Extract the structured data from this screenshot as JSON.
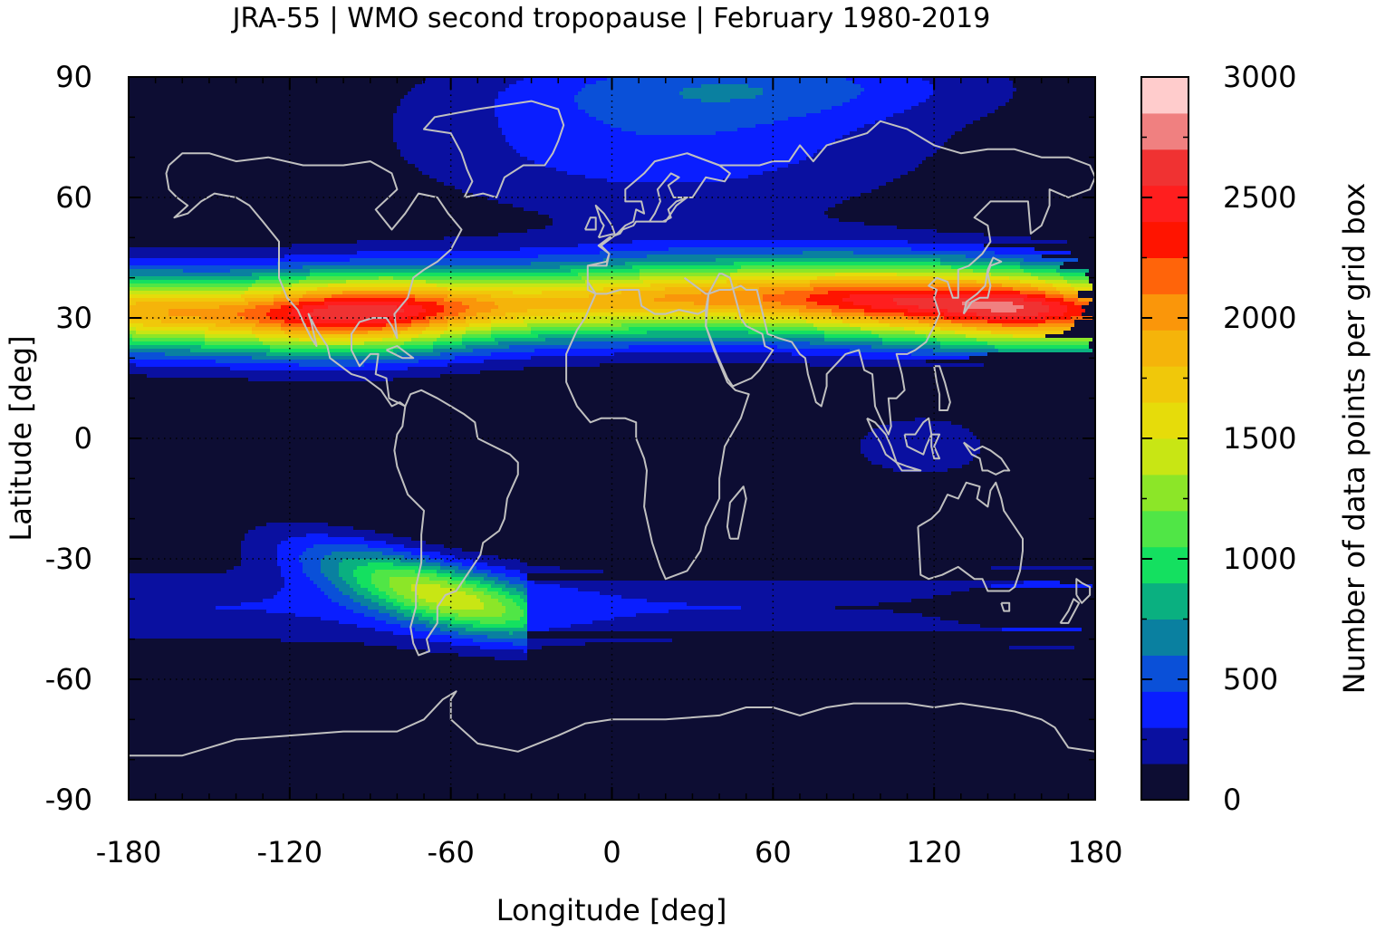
{
  "chart_data": {
    "type": "heatmap",
    "title": "JRA-55 | WMO second tropopause | February 1980-2019",
    "xlabel": "Longitude [deg]",
    "ylabel": "Latitude [deg]",
    "colorbar_label": "Number of data points per grid box",
    "xlim": [
      -180,
      180
    ],
    "ylim": [
      -90,
      90
    ],
    "xticks": [
      -180,
      -120,
      -60,
      0,
      60,
      120,
      180
    ],
    "yticks": [
      -90,
      -60,
      -30,
      0,
      30,
      60,
      90
    ],
    "xticklabels": [
      "-180",
      "-120",
      "-60",
      "0",
      "60",
      "120",
      "180"
    ],
    "yticklabels": [
      "-90",
      "-60",
      "-30",
      "0",
      "30",
      "60",
      "90"
    ],
    "colorbar_range": [
      0,
      3000
    ],
    "colorbar_ticks": [
      0,
      500,
      1000,
      1500,
      2000,
      2500,
      3000
    ],
    "colorbar_ticklabels": [
      "0",
      "500",
      "1000",
      "1500",
      "2000",
      "2500",
      "3000"
    ],
    "grid": "dotted at major ticks",
    "overlay": "coastlines (grey)",
    "colorscale": [
      {
        "from": 0,
        "to": 150,
        "color": "#0d0d33"
      },
      {
        "from": 150,
        "to": 300,
        "color": "#0a10a0"
      },
      {
        "from": 300,
        "to": 450,
        "color": "#0a1eff"
      },
      {
        "from": 450,
        "to": 600,
        "color": "#0a50d8"
      },
      {
        "from": 600,
        "to": 750,
        "color": "#0a80a0"
      },
      {
        "from": 750,
        "to": 900,
        "color": "#0ab080"
      },
      {
        "from": 900,
        "to": 1050,
        "color": "#14e060"
      },
      {
        "from": 1050,
        "to": 1200,
        "color": "#50e646"
      },
      {
        "from": 1200,
        "to": 1350,
        "color": "#8ce628"
      },
      {
        "from": 1350,
        "to": 1500,
        "color": "#c8e614"
      },
      {
        "from": 1500,
        "to": 1650,
        "color": "#e6dc0a"
      },
      {
        "from": 1650,
        "to": 1800,
        "color": "#f0c80a"
      },
      {
        "from": 1800,
        "to": 1950,
        "color": "#f5b40a"
      },
      {
        "from": 1950,
        "to": 2100,
        "color": "#fa960a"
      },
      {
        "from": 2100,
        "to": 2250,
        "color": "#ff640a"
      },
      {
        "from": 2250,
        "to": 2400,
        "color": "#ff1400"
      },
      {
        "from": 2400,
        "to": 2550,
        "color": "#ff1e1e"
      },
      {
        "from": 2550,
        "to": 2700,
        "color": "#f03232"
      },
      {
        "from": 2700,
        "to": 2850,
        "color": "#f08080"
      },
      {
        "from": 2850,
        "to": 3000,
        "color": "#ffcccc"
      }
    ],
    "features": [
      {
        "name": "NH subtropical band",
        "lat_center": 33,
        "lon_range": [
          -180,
          180
        ],
        "peak_value": 2900,
        "peak_lon": [
          150,
          165
        ]
      },
      {
        "name": "NH secondary peak",
        "lat_center": 34,
        "lon_range": [
          -120,
          -60
        ],
        "peak_value": 2800
      },
      {
        "name": "North Atlantic / Arctic region",
        "lat_range": [
          55,
          90
        ],
        "lon_range": [
          -30,
          90
        ],
        "value": 350
      },
      {
        "name": "SH Pacific band",
        "lat_range": [
          -50,
          -20
        ],
        "lon_range": [
          -150,
          -50
        ],
        "peak_value": 1050
      },
      {
        "name": "SH midlatitude band",
        "lat_range": [
          -55,
          -32
        ],
        "lon_range": [
          -180,
          180
        ],
        "value": 400
      },
      {
        "name": "Maritime Continent",
        "lat_range": [
          -10,
          10
        ],
        "lon_range": [
          90,
          140
        ],
        "value": 250
      }
    ]
  }
}
